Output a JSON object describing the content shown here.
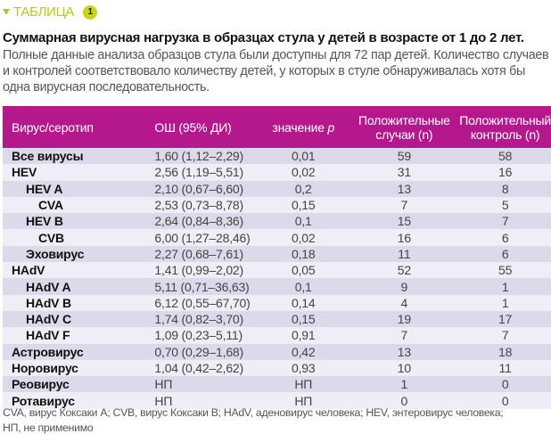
{
  "label": "ТАБЛИЦА",
  "label_number": "1",
  "title": "Суммарная вирусная нагрузка в образцах стула у детей в возрасте от 1 до 2 лет.",
  "description": "Полные данные анализа образцов стула были доступны для 72 пар детей. Количество случаев и контролей соответствовало количеству детей, у которых в стуле обнаруживалась хотя бы одна вирусная последовательность.",
  "headers": {
    "virus": "Вирус/серотип",
    "or": "ОШ (95% ДИ)",
    "p_prefix": "значение ",
    "p": "p",
    "cases": "Положительные случаи (n)",
    "controls": "Положительный контроль (n)"
  },
  "rows": [
    {
      "name": "Все вирусы",
      "level": 1,
      "or": "1,60 (1,12–2,29)",
      "p": "0,01",
      "cases": "59",
      "controls": "58"
    },
    {
      "name": "HEV",
      "level": 1,
      "or": "2,56 (1,19–5,51)",
      "p": "0,02",
      "cases": "31",
      "controls": "16"
    },
    {
      "name": "HEV A",
      "level": 2,
      "or": "2,10 (0,67–6,60)",
      "p": "0,2",
      "cases": "13",
      "controls": "8"
    },
    {
      "name": "CVA",
      "level": 3,
      "or": "2,53 (0,73–8,78)",
      "p": "0,15",
      "cases": "7",
      "controls": "5"
    },
    {
      "name": "HEV B",
      "level": 2,
      "or": "2,64 (0,84–8,36)",
      "p": "0,1",
      "cases": "15",
      "controls": "7"
    },
    {
      "name": "CVB",
      "level": 3,
      "or": "6,00 (1,27–28,46)",
      "p": "0,02",
      "cases": "16",
      "controls": "6"
    },
    {
      "name": "Эховирус",
      "level": 2,
      "or": "2,27 (0,68–7,61)",
      "p": "0,18",
      "cases": "11",
      "controls": "6"
    },
    {
      "name": "HAdV",
      "level": 1,
      "or": "1,41 (0,99–2,02)",
      "p": "0,05",
      "cases": "52",
      "controls": "55"
    },
    {
      "name": "HAdV A",
      "level": 2,
      "or": "5,11 (0,71–36,63)",
      "p": "0,1",
      "cases": "9",
      "controls": "1"
    },
    {
      "name": "HAdV B",
      "level": 2,
      "or": "6,12 (0,55–67,70)",
      "p": "0,14",
      "cases": "4",
      "controls": "1"
    },
    {
      "name": "HAdV C",
      "level": 2,
      "or": "1,74 (0,82–3,70)",
      "p": "0,15",
      "cases": "19",
      "controls": "17"
    },
    {
      "name": "HAdV F",
      "level": 2,
      "or": "1,09 (0,23–5,11)",
      "p": "0,91",
      "cases": "7",
      "controls": "7"
    },
    {
      "name": "Астровирус",
      "level": 1,
      "or": "0,70 (0,29–1,68)",
      "p": "0,42",
      "cases": "13",
      "controls": "18"
    },
    {
      "name": "Норовирус",
      "level": 1,
      "or": "1,04 (0,42–2,62)",
      "p": "0,93",
      "cases": "10",
      "controls": "11"
    },
    {
      "name": "Реовирус",
      "level": 1,
      "or": "НП",
      "p": "НП",
      "cases": "1",
      "controls": "0"
    },
    {
      "name": "Ротавирус",
      "level": 1,
      "or": "НП",
      "p": "НП",
      "cases": "0",
      "controls": "0"
    }
  ],
  "footnote_line1": "CVA, вирус Коксаки А; CVB, вирус Коксаки В; HAdV, аденовирус человека; HEV, энтеровирус человека;",
  "footnote_line2": "НП, не применимо",
  "colors": {
    "header": "#b5178c",
    "accent": "#b9c61e",
    "row_odd": "#dbd9ea",
    "row_even": "#efeef6"
  }
}
